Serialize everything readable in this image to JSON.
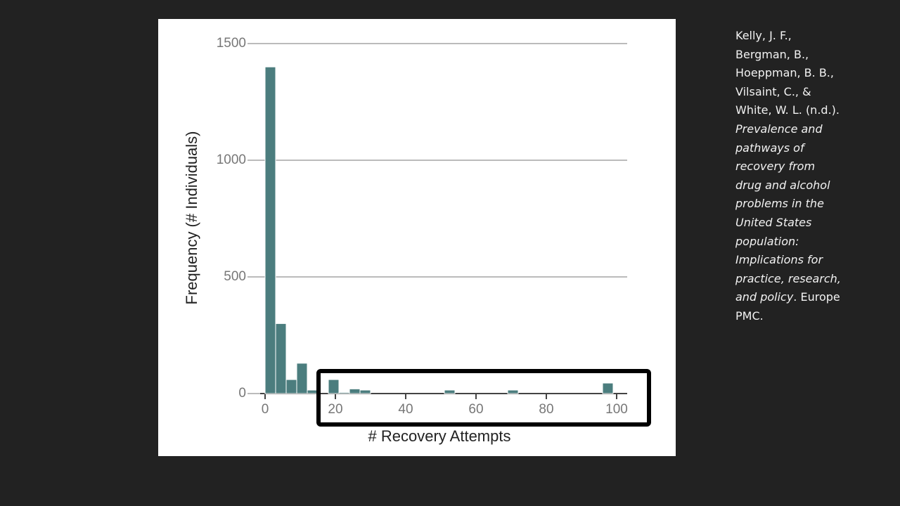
{
  "chart_data": {
    "type": "histogram",
    "xlabel": "# Recovery Attempts",
    "ylabel": "Frequency (# Individuals)",
    "bins": [
      0,
      3,
      6,
      9,
      12,
      15,
      18,
      21,
      24,
      27,
      30,
      33,
      36,
      39,
      42,
      45,
      48,
      51,
      54,
      57,
      60,
      63,
      66,
      69,
      72,
      75,
      78,
      81,
      84,
      87,
      90,
      93,
      96,
      99,
      102
    ],
    "values": [
      1400,
      300,
      60,
      130,
      15,
      0,
      60,
      5,
      20,
      15,
      0,
      0,
      0,
      0,
      0,
      0,
      0,
      15,
      0,
      0,
      0,
      0,
      0,
      15,
      0,
      0,
      0,
      0,
      0,
      0,
      0,
      0,
      45,
      0
    ],
    "color": "#4b7d7e",
    "xlim": [
      -5,
      103
    ],
    "xticks": [
      0,
      20,
      40,
      60,
      80,
      100
    ],
    "ylim": [
      0,
      1500
    ],
    "yticks": [
      0,
      500,
      1000,
      1500
    ],
    "grid": true
  },
  "citation": {
    "authors": "Kelly, J. F., Bergman, B., Hoeppman, B. B., Vilsaint, C., & White, W. L. (n.d.).",
    "title": "Prevalence and pathways of recovery from drug and alcohol problems in the United States population: Implications for practice, research, and policy",
    "source": ". Europe PMC."
  }
}
